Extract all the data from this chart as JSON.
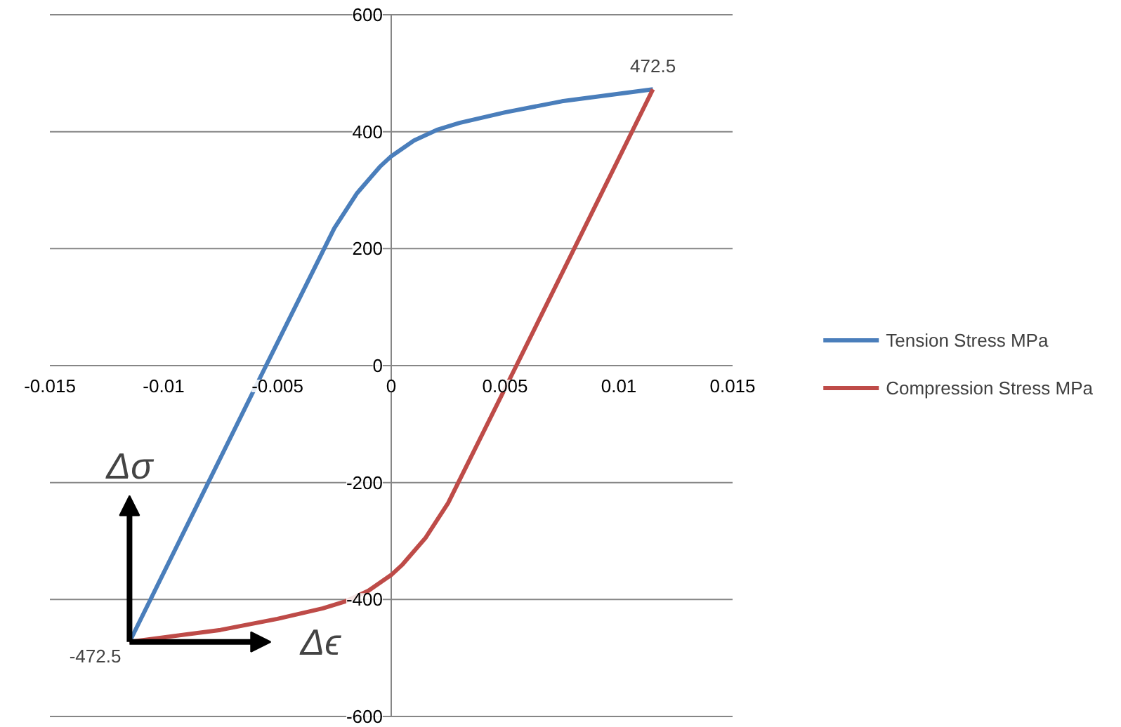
{
  "chart_data": {
    "type": "line",
    "xlim": [
      -0.015,
      0.015
    ],
    "ylim": [
      -600,
      600
    ],
    "xticks": [
      -0.015,
      -0.01,
      -0.005,
      0,
      0.005,
      0.01,
      0.015
    ],
    "yticks": [
      -600,
      -400,
      -200,
      0,
      200,
      400,
      600
    ],
    "grid": "y",
    "legend": "right",
    "line_style": "solid",
    "series": [
      {
        "name": "Tension Stress MPa",
        "color": "#4a7ebb",
        "x": [
          -0.0115,
          -0.0055,
          -0.0025,
          -0.0015,
          -0.0005,
          0,
          0.001,
          0.002,
          0.003,
          0.005,
          0.0075,
          0.0115
        ],
        "values": [
          -472.5,
          0,
          235,
          295,
          340,
          358,
          385,
          403,
          415,
          433,
          452,
          472.5
        ]
      },
      {
        "name": "Compression Stress MPa",
        "color": "#be4b48",
        "x": [
          -0.0115,
          -0.0075,
          -0.005,
          -0.003,
          -0.002,
          -0.001,
          0,
          0.0005,
          0.0015,
          0.0025,
          0.0055,
          0.0115
        ],
        "values": [
          -472.5,
          -452,
          -433,
          -415,
          -403,
          -385,
          -358,
          -340,
          -295,
          -235,
          0,
          472.5
        ]
      }
    ],
    "annotations": [
      {
        "text": "472.5",
        "x": 0.0115,
        "y": 472.5
      },
      {
        "text": "-472.5",
        "x": -0.0115,
        "y": -472.5
      },
      "Δσ",
      "Δϵ"
    ]
  }
}
